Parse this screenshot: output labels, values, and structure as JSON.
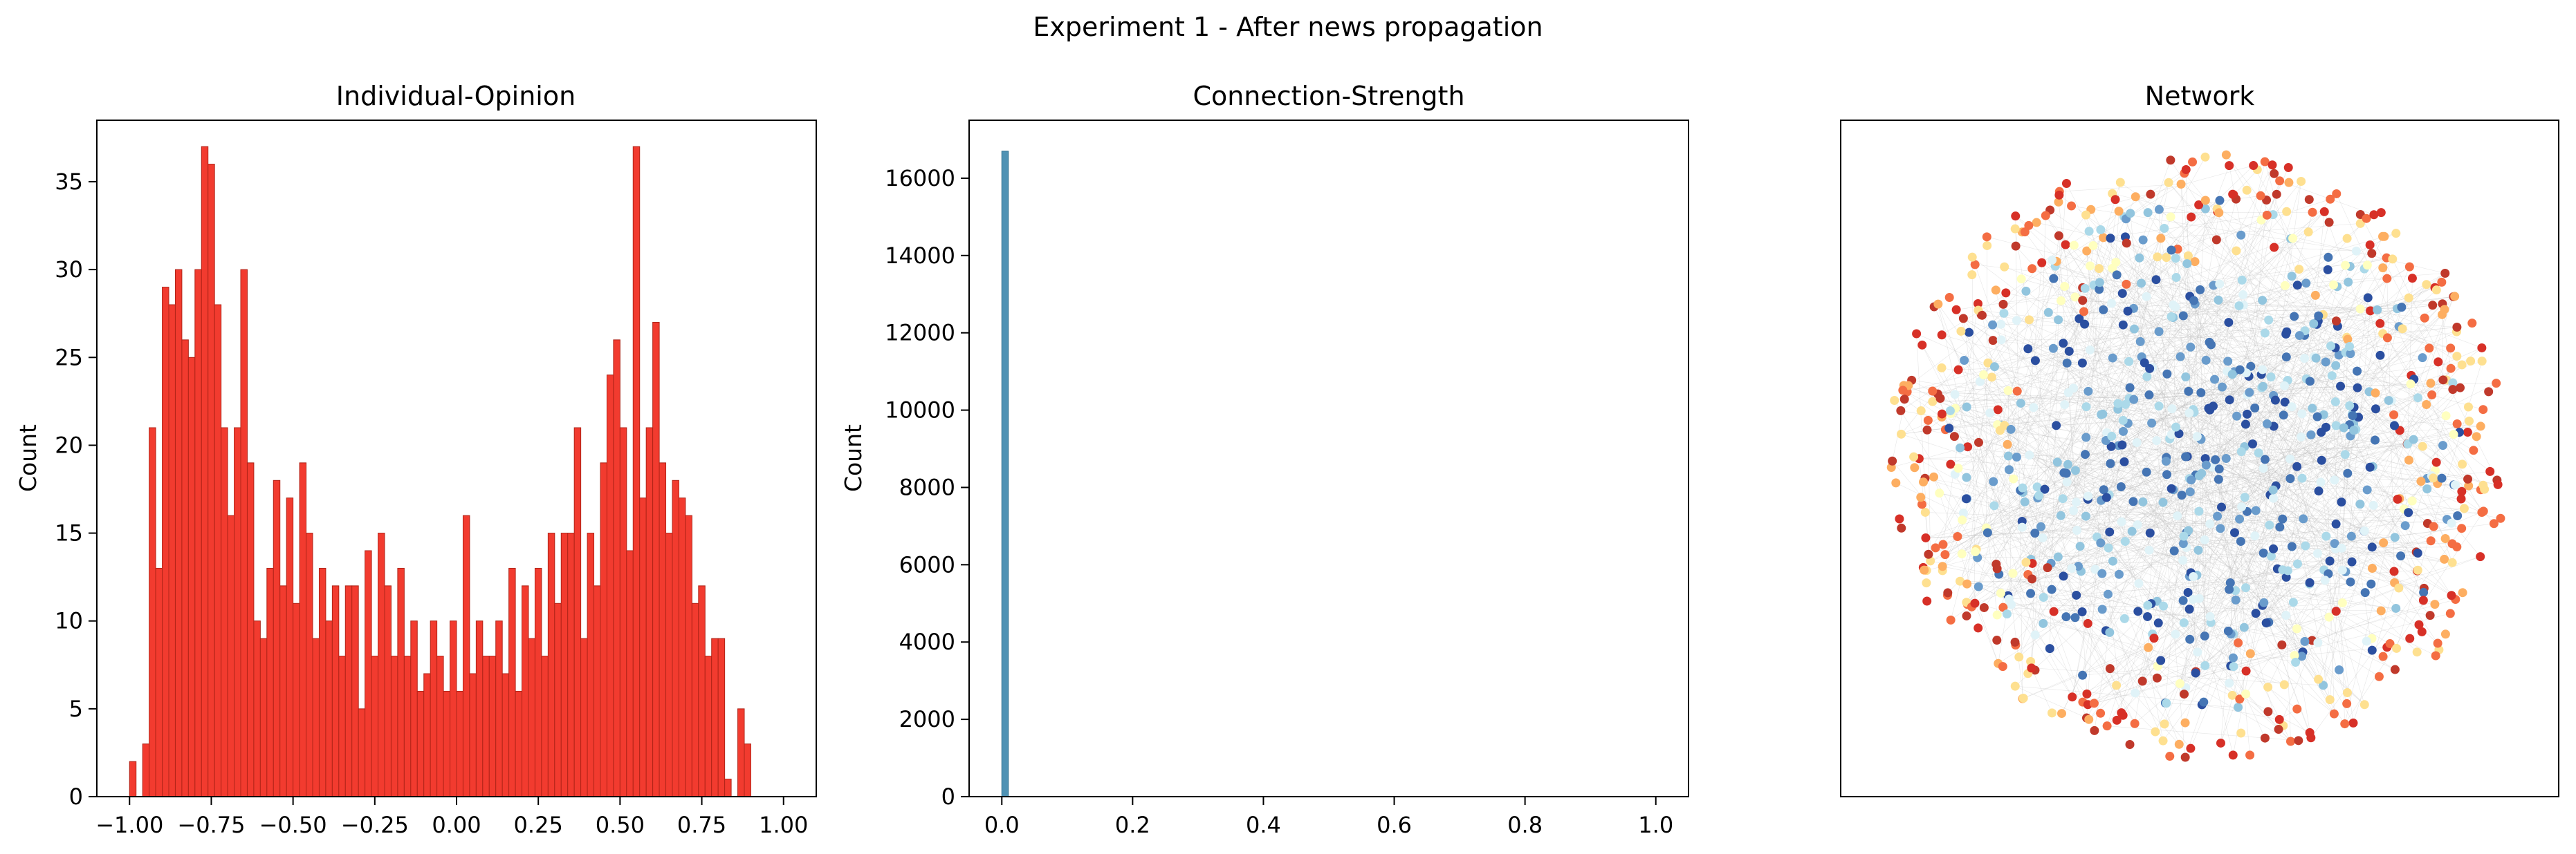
{
  "suptitle": "Experiment 1 - After news propagation",
  "chart_data": [
    {
      "type": "bar",
      "title": "Individual-Opinion",
      "xlabel": "",
      "ylabel": "Count",
      "xlim": [
        -1.1,
        1.1
      ],
      "ylim": [
        0,
        38.5
      ],
      "xticks": [
        -1.0,
        -0.75,
        -0.5,
        -0.25,
        0.0,
        0.25,
        0.5,
        0.75,
        1.0
      ],
      "xtick_labels": [
        "−1.00",
        "−0.75",
        "−0.50",
        "−0.25",
        "0.00",
        "0.25",
        "0.50",
        "0.75",
        "1.00"
      ],
      "yticks": [
        0,
        5,
        10,
        15,
        20,
        25,
        30,
        35
      ],
      "ytick_labels": [
        "0",
        "5",
        "10",
        "15",
        "20",
        "25",
        "30",
        "35"
      ],
      "bar_color": "#f23b2f",
      "edge_color": "#b02418",
      "bin_start": -1.0,
      "bin_width": 0.02,
      "counts": [
        2,
        0,
        3,
        21,
        13,
        29,
        28,
        30,
        26,
        25,
        30,
        37,
        36,
        28,
        21,
        16,
        21,
        30,
        19,
        10,
        9,
        13,
        18,
        12,
        17,
        11,
        19,
        15,
        9,
        13,
        10,
        12,
        8,
        12,
        12,
        5,
        14,
        8,
        15,
        12,
        8,
        13,
        8,
        10,
        6,
        7,
        10,
        8,
        6,
        10,
        6,
        16,
        7,
        10,
        8,
        8,
        10,
        7,
        13,
        6,
        12,
        9,
        13,
        8,
        15,
        11,
        15,
        15,
        21,
        9,
        15,
        12,
        19,
        24,
        26,
        21,
        14,
        37,
        17,
        21,
        27,
        19,
        15,
        18,
        17,
        16,
        11,
        12,
        8,
        9,
        9,
        1,
        0,
        5,
        3,
        0,
        0,
        0,
        0,
        0
      ]
    },
    {
      "type": "bar",
      "title": "Connection-Strength",
      "xlabel": "",
      "ylabel": "Count",
      "xlim": [
        -0.05,
        1.05
      ],
      "ylim": [
        0,
        17500
      ],
      "xticks": [
        0.0,
        0.2,
        0.4,
        0.6,
        0.8,
        1.0
      ],
      "xtick_labels": [
        "0.0",
        "0.2",
        "0.4",
        "0.6",
        "0.8",
        "1.0"
      ],
      "yticks": [
        0,
        2000,
        4000,
        6000,
        8000,
        10000,
        12000,
        14000,
        16000
      ],
      "ytick_labels": [
        "0",
        "2000",
        "4000",
        "6000",
        "8000",
        "10000",
        "12000",
        "14000",
        "16000"
      ],
      "bar_color": "#4f92b4",
      "edge_color": "#2d6f8e",
      "bins": [
        {
          "x0": 0.0,
          "x1": 0.01,
          "count": 16700
        }
      ]
    },
    {
      "type": "network",
      "title": "Network",
      "node_colors": [
        "#2b4fa0",
        "#4575b4",
        "#6a9ccc",
        "#92c5de",
        "#abd9e9",
        "#e0f3f8",
        "#ffffbf",
        "#fee090",
        "#fdae61",
        "#f46d43",
        "#d73027",
        "#c0392b"
      ],
      "edge_color": "#b8b8b8",
      "node_count": 1000
    }
  ]
}
